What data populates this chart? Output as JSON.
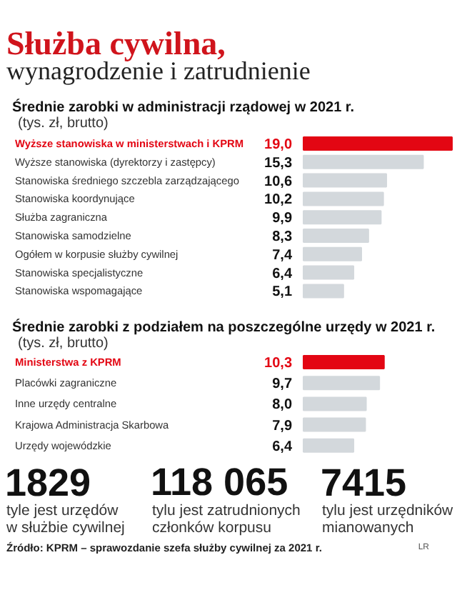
{
  "chart_data": [
    {
      "type": "other",
      "title": "Służba cywilna,",
      "subtitle": "wynagrodzenie i zatrudnienie"
    },
    {
      "type": "bar",
      "orientation": "horizontal",
      "title": "Średnie zarobki w administracji rządowej w 2021 r.",
      "subtitle": "(tys. zł, brutto)",
      "categories": [
        "Wyższe stanowiska w ministerstwach i KPRM",
        "Wyższe stanowiska (dyrektorzy i zastępcy)",
        "Stanowiska średniego szczebla zarządzającego",
        "Stanowiska koordynujące",
        "Służba zagraniczna",
        "Stanowiska samodzielne",
        "Ogółem w korpusie służby cywilnej",
        "Stanowiska specjalistyczne",
        "Stanowiska wspomagające"
      ],
      "values": [
        19.0,
        15.3,
        10.6,
        10.2,
        9.9,
        8.3,
        7.4,
        6.4,
        5.1
      ],
      "value_labels": [
        "19,0",
        "15,3",
        "10,6",
        "10,2",
        "9,9",
        "8,3",
        "7,4",
        "6,4",
        "5,1"
      ],
      "colors": [
        "#e30613",
        "#d3d8dc",
        "#d3d8dc",
        "#d3d8dc",
        "#d3d8dc",
        "#d3d8dc",
        "#d3d8dc",
        "#d3d8dc",
        "#d3d8dc"
      ]
    },
    {
      "type": "bar",
      "orientation": "horizontal",
      "title": "Średnie zarobki z podziałem na poszczególne urzędy w 2021 r.",
      "subtitle": "(tys. zł, brutto)",
      "categories": [
        "Ministerstwa z KPRM",
        "Placówki zagraniczne",
        "Inne urzędy centralne",
        "Krajowa Administracja Skarbowa",
        "Urzędy wojewódzkie"
      ],
      "values": [
        10.3,
        9.7,
        8.0,
        7.9,
        6.4
      ],
      "value_labels": [
        "10,3",
        "9,7",
        "8,0",
        "7,9",
        "6,4"
      ],
      "colors": [
        "#e30613",
        "#d3d8dc",
        "#d3d8dc",
        "#d3d8dc",
        "#d3d8dc"
      ]
    },
    {
      "type": "other",
      "annotations": [
        "1829",
        "tyle jest urzędów\nw służbie cywilnej",
        "118 065",
        "tylu jest zatrudnionych\nczłonków korpusu",
        "7415",
        "tylu jest urzędników\nmianowanych",
        "Źródło: KPRM – sprawozdanie szefa służby cywilnej za 2021 r.",
        "LR"
      ]
    }
  ]
}
